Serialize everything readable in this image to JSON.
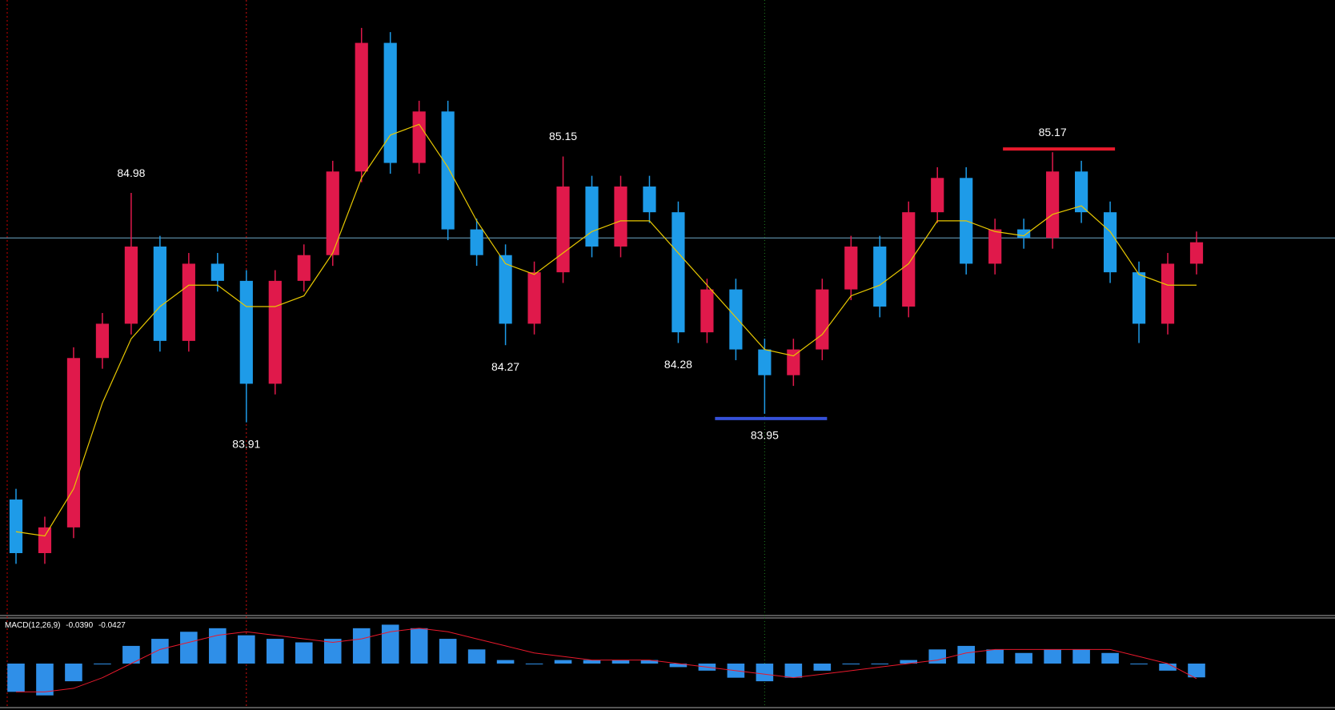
{
  "chart_data": {
    "type": "candlestick",
    "ylim": [
      83.02,
      85.88
    ],
    "up_color": "#e0194b",
    "down_color": "#1e9be8",
    "ma_color": "#e8c800",
    "open": [
      83.55,
      83.3,
      83.42,
      84.21,
      84.37,
      84.73,
      84.29,
      84.65,
      84.57,
      84.09,
      84.57,
      84.69,
      85.08,
      85.68,
      85.12,
      85.36,
      84.81,
      84.69,
      84.37,
      84.61,
      85.01,
      84.73,
      85.01,
      84.89,
      84.33,
      84.53,
      84.25,
      84.13,
      84.25,
      84.53,
      84.73,
      84.45,
      84.89,
      85.05,
      84.65,
      84.81,
      84.77,
      85.08,
      84.89,
      84.61,
      84.37,
      84.65
    ],
    "high": [
      83.6,
      83.47,
      84.26,
      84.42,
      84.98,
      84.78,
      84.7,
      84.7,
      84.62,
      84.62,
      84.74,
      85.13,
      85.75,
      85.73,
      85.41,
      85.41,
      84.86,
      84.74,
      84.66,
      85.15,
      85.06,
      85.06,
      85.06,
      84.94,
      84.58,
      84.58,
      84.3,
      84.3,
      84.58,
      84.78,
      84.78,
      84.94,
      85.1,
      85.1,
      84.86,
      84.86,
      85.17,
      85.13,
      84.94,
      84.66,
      84.7,
      84.8
    ],
    "low": [
      83.25,
      83.25,
      83.37,
      84.16,
      84.32,
      84.24,
      84.24,
      84.52,
      83.91,
      84.04,
      84.52,
      84.64,
      85.03,
      85.07,
      85.07,
      84.76,
      84.64,
      84.27,
      84.32,
      84.56,
      84.68,
      84.68,
      84.84,
      84.28,
      84.28,
      84.2,
      83.95,
      84.08,
      84.2,
      84.48,
      84.4,
      84.4,
      84.84,
      84.6,
      84.6,
      84.72,
      84.72,
      84.84,
      84.56,
      84.28,
      84.32,
      84.6
    ],
    "close": [
      83.3,
      83.42,
      84.21,
      84.37,
      84.73,
      84.29,
      84.65,
      84.57,
      84.09,
      84.57,
      84.69,
      85.08,
      85.68,
      85.12,
      85.36,
      84.81,
      84.69,
      84.37,
      84.61,
      85.01,
      84.73,
      85.01,
      84.89,
      84.33,
      84.53,
      84.25,
      84.13,
      84.25,
      84.53,
      84.73,
      84.45,
      84.89,
      85.05,
      84.65,
      84.81,
      84.77,
      85.08,
      84.89,
      84.61,
      84.37,
      84.65,
      84.75
    ],
    "ma_values": [
      83.4,
      83.38,
      83.6,
      84.0,
      84.3,
      84.45,
      84.55,
      84.55,
      84.45,
      84.45,
      84.5,
      84.7,
      85.05,
      85.25,
      85.3,
      85.1,
      84.85,
      84.65,
      84.6,
      84.7,
      84.8,
      84.85,
      84.85,
      84.7,
      84.55,
      84.4,
      84.25,
      84.22,
      84.32,
      84.5,
      84.55,
      84.65,
      84.85,
      84.85,
      84.8,
      84.78,
      84.88,
      84.92,
      84.8,
      84.6,
      84.55,
      84.55
    ],
    "hline": 84.77,
    "hline_color": "#6fa8c8",
    "annotations": [
      {
        "value": 84.98
      },
      {
        "value": 83.91
      },
      {
        "value": 85.15
      },
      {
        "value": 84.27
      },
      {
        "value": 83.95,
        "line_color": "#3550d8"
      },
      {
        "value": 85.17,
        "line_color": "#e8192c"
      },
      {
        "value": 84.28
      }
    ],
    "macd": {
      "title": "MACD(12,26,9)",
      "main": {
        "value": -0.039,
        "label": "-0.0390"
      },
      "signal": -0.0427,
      "ylim": [
        -0.12,
        0.12
      ],
      "hist_color": "#2f8fe8",
      "signal_color": "#e8192c",
      "histogram": [
        -0.08,
        -0.09,
        -0.05,
        0.0,
        0.05,
        0.07,
        0.09,
        0.1,
        0.08,
        0.07,
        0.06,
        0.07,
        0.1,
        0.11,
        0.1,
        0.07,
        0.04,
        0.01,
        0.0,
        0.01,
        0.01,
        0.01,
        0.01,
        -0.01,
        -0.02,
        -0.04,
        -0.05,
        -0.04,
        -0.02,
        0.0,
        0.0,
        0.01,
        0.04,
        0.05,
        0.04,
        0.03,
        0.04,
        0.04,
        0.03,
        0.0,
        -0.02,
        -0.039
      ],
      "signal_values": [
        -0.08,
        -0.08,
        -0.07,
        -0.04,
        0.0,
        0.04,
        0.06,
        0.08,
        0.09,
        0.08,
        0.07,
        0.06,
        0.07,
        0.09,
        0.1,
        0.09,
        0.07,
        0.05,
        0.03,
        0.02,
        0.01,
        0.01,
        0.01,
        0.0,
        -0.01,
        -0.02,
        -0.03,
        -0.04,
        -0.03,
        -0.02,
        -0.01,
        0.0,
        0.01,
        0.03,
        0.04,
        0.04,
        0.04,
        0.04,
        0.04,
        0.02,
        0.0,
        -0.0427
      ]
    }
  }
}
